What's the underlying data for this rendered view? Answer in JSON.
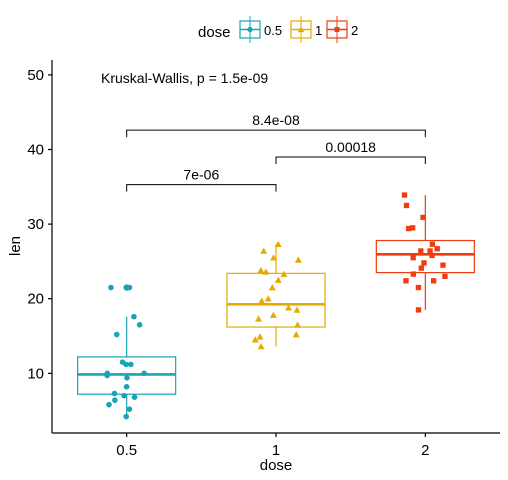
{
  "colors": {
    "d05": "#1aa3b4",
    "d1": "#e6ab02",
    "d2": "#f03c0e",
    "bracket": "#000000"
  },
  "legend": {
    "title": "dose",
    "items": [
      {
        "label": "0.5",
        "color": "#1aa3b4",
        "shape": "circle"
      },
      {
        "label": "1",
        "color": "#e6ab02",
        "shape": "triangle"
      },
      {
        "label": "2",
        "color": "#f03c0e",
        "shape": "square"
      }
    ]
  },
  "annotations": {
    "global_test": "Kruskal-Wallis, p = 1.5e-09",
    "comparisons": [
      {
        "from": "0.5",
        "to": "1",
        "label": "7e-06",
        "y": 35.3
      },
      {
        "from": "1",
        "to": "2",
        "label": "0.00018",
        "y": 39.0
      },
      {
        "from": "0.5",
        "to": "2",
        "label": "8.4e-08",
        "y": 42.6
      }
    ]
  },
  "chart_data": {
    "type": "box",
    "xlabel": "dose",
    "ylabel": "len",
    "categories": [
      "0.5",
      "1",
      "2"
    ],
    "ylim": [
      2,
      52
    ],
    "yticks": [
      10,
      20,
      30,
      40,
      50
    ],
    "grid": false,
    "legend_position": "top",
    "series": [
      {
        "name": "0.5",
        "color": "#1aa3b4",
        "shape": "circle",
        "box": {
          "min": 4.2,
          "q1": 7.2,
          "median": 9.85,
          "q3": 12.2,
          "max": 17.6
        },
        "outliers": [
          21.5
        ],
        "points": [
          4.2,
          5.2,
          5.8,
          6.4,
          7.0,
          9.4,
          10.0,
          10.0,
          11.2,
          11.5,
          15.2,
          16.5,
          17.6,
          9.7,
          8.2,
          7.3,
          6.8,
          21.5,
          21.5,
          11.2
        ]
      },
      {
        "name": "1",
        "color": "#e6ab02",
        "shape": "triangle",
        "box": {
          "min": 13.6,
          "q1": 16.2,
          "median": 19.25,
          "q3": 23.4,
          "max": 27.3
        },
        "outliers": [],
        "points": [
          13.6,
          14.5,
          15.2,
          16.5,
          17.3,
          17.8,
          18.5,
          19.7,
          21.5,
          22.5,
          23.3,
          23.6,
          23.8,
          25.2,
          25.5,
          26.4,
          27.3,
          20.0,
          14.9,
          18.8
        ]
      },
      {
        "name": "2",
        "color": "#f03c0e",
        "shape": "square",
        "box": {
          "min": 18.5,
          "q1": 23.5,
          "median": 25.95,
          "q3": 27.8,
          "max": 33.9
        },
        "outliers": [],
        "points": [
          18.5,
          21.5,
          22.4,
          23.0,
          23.3,
          24.5,
          24.8,
          25.5,
          26.4,
          26.4,
          26.7,
          27.3,
          29.4,
          29.5,
          30.9,
          32.5,
          33.9,
          24.1,
          22.4,
          25.8
        ]
      }
    ]
  }
}
